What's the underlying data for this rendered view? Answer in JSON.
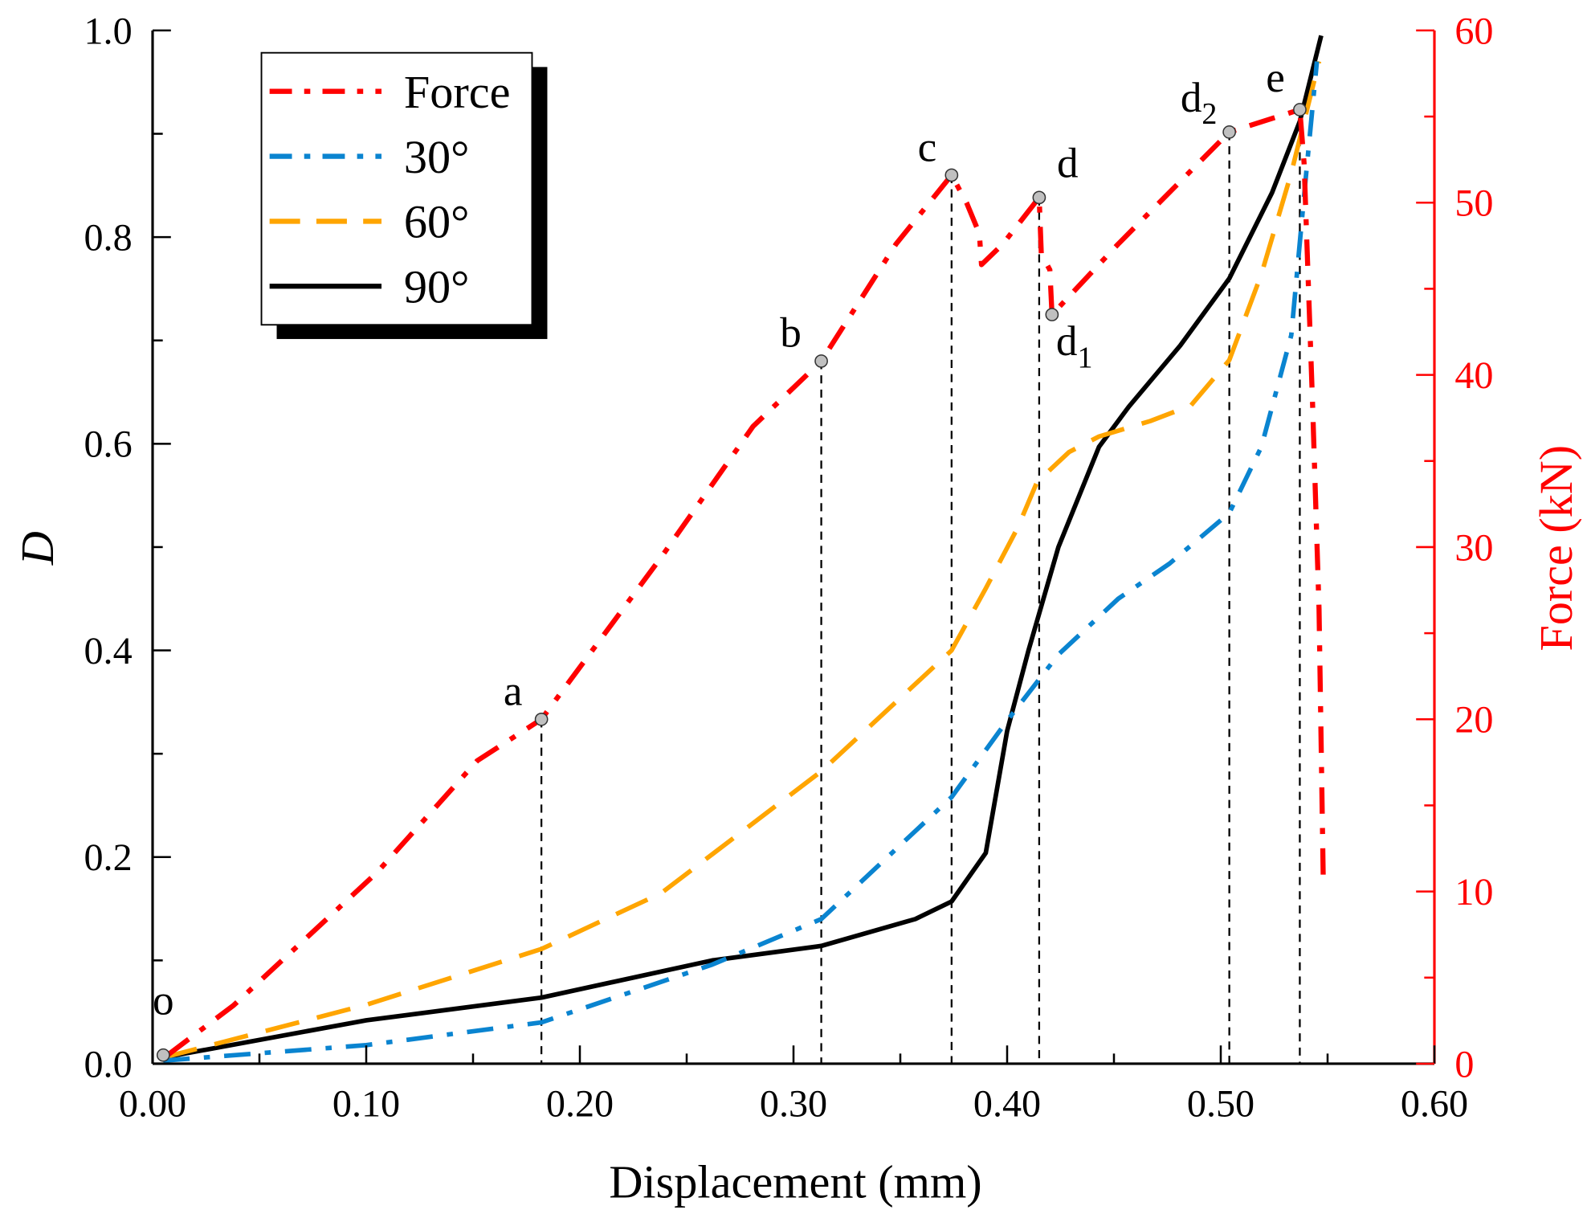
{
  "chart_data": {
    "type": "line",
    "xlabel": "Displacement (mm)",
    "ylabel": "D",
    "y2label": "Force (kN)",
    "xlim": [
      0,
      0.6
    ],
    "ylim": [
      0,
      1.0
    ],
    "y2lim": [
      0,
      60
    ],
    "xticks": [
      "0.00",
      "0.10",
      "0.20",
      "0.30",
      "0.40",
      "0.50",
      "0.60"
    ],
    "yticks": [
      "0.0",
      "0.2",
      "0.4",
      "0.6",
      "0.8",
      "1.0"
    ],
    "y2ticks": [
      "0",
      "10",
      "20",
      "30",
      "40",
      "50",
      "60"
    ],
    "legend_position": "top-left",
    "colors": {
      "force": "#ff0000",
      "d30": "#0a84d0",
      "d60": "#ffa500",
      "d90": "#000000"
    },
    "series": [
      {
        "name": "Force",
        "axis": "right",
        "style": "dash-dot",
        "color": "#ff0000",
        "x": [
          0.007,
          0.038,
          0.105,
          0.152,
          0.182,
          0.238,
          0.281,
          0.313,
          0.348,
          0.374,
          0.381,
          0.387,
          0.388,
          0.398,
          0.415,
          0.416,
          0.42,
          0.421,
          0.452,
          0.504,
          0.537,
          0.539,
          0.543,
          0.546,
          0.548
        ],
        "y": [
          0.5,
          3.4,
          11.1,
          17.6,
          20.0,
          29.4,
          37.0,
          40.8,
          47.6,
          51.6,
          50.0,
          48.2,
          46.4,
          47.6,
          50.3,
          47.0,
          46.1,
          43.5,
          47.6,
          54.1,
          55.4,
          52.3,
          38.2,
          26.4,
          10.5
        ]
      },
      {
        "name": "30°",
        "axis": "left",
        "style": "dash-dot",
        "color": "#0a84d0",
        "x": [
          0.005,
          0.1,
          0.182,
          0.262,
          0.313,
          0.374,
          0.4,
          0.424,
          0.452,
          0.476,
          0.504,
          0.519,
          0.533,
          0.54,
          0.545
        ],
        "y": [
          0.003,
          0.018,
          0.04,
          0.096,
          0.14,
          0.258,
          0.332,
          0.396,
          0.45,
          0.484,
          0.533,
          0.597,
          0.705,
          0.862,
          0.97
        ]
      },
      {
        "name": "60°",
        "axis": "left",
        "style": "dash",
        "color": "#ffa500",
        "x": [
          0.005,
          0.1,
          0.182,
          0.238,
          0.313,
          0.374,
          0.39,
          0.405,
          0.414,
          0.429,
          0.443,
          0.467,
          0.486,
          0.504,
          0.519,
          0.533,
          0.546
        ],
        "y": [
          0.006,
          0.057,
          0.111,
          0.165,
          0.283,
          0.4,
          0.46,
          0.519,
          0.563,
          0.592,
          0.607,
          0.622,
          0.637,
          0.681,
          0.764,
          0.862,
          0.97
        ]
      },
      {
        "name": "90°",
        "axis": "left",
        "style": "solid",
        "color": "#000000",
        "x": [
          0.005,
          0.1,
          0.182,
          0.262,
          0.313,
          0.357,
          0.374,
          0.39,
          0.4,
          0.41,
          0.424,
          0.443,
          0.457,
          0.481,
          0.504,
          0.524,
          0.537,
          0.547
        ],
        "y": [
          0.006,
          0.042,
          0.064,
          0.1,
          0.114,
          0.14,
          0.157,
          0.204,
          0.322,
          0.4,
          0.5,
          0.597,
          0.636,
          0.695,
          0.76,
          0.843,
          0.912,
          0.995
        ]
      }
    ],
    "annotations": [
      {
        "label": "o",
        "sub": "",
        "x": 0.005,
        "force": 0.5,
        "guide": false
      },
      {
        "label": "a",
        "sub": "",
        "x": 0.182,
        "force": 20.0,
        "guide": true
      },
      {
        "label": "b",
        "sub": "",
        "x": 0.313,
        "force": 40.8,
        "guide": true
      },
      {
        "label": "c",
        "sub": "",
        "x": 0.374,
        "force": 51.6,
        "guide": true
      },
      {
        "label": "d",
        "sub": "",
        "x": 0.415,
        "force": 50.3,
        "guide": true
      },
      {
        "label": "d",
        "sub": "1",
        "x": 0.421,
        "force": 43.5,
        "guide": false
      },
      {
        "label": "d",
        "sub": "2",
        "x": 0.504,
        "force": 54.1,
        "guide": true
      },
      {
        "label": "e",
        "sub": "",
        "x": 0.537,
        "force": 55.4,
        "guide": true
      }
    ]
  }
}
